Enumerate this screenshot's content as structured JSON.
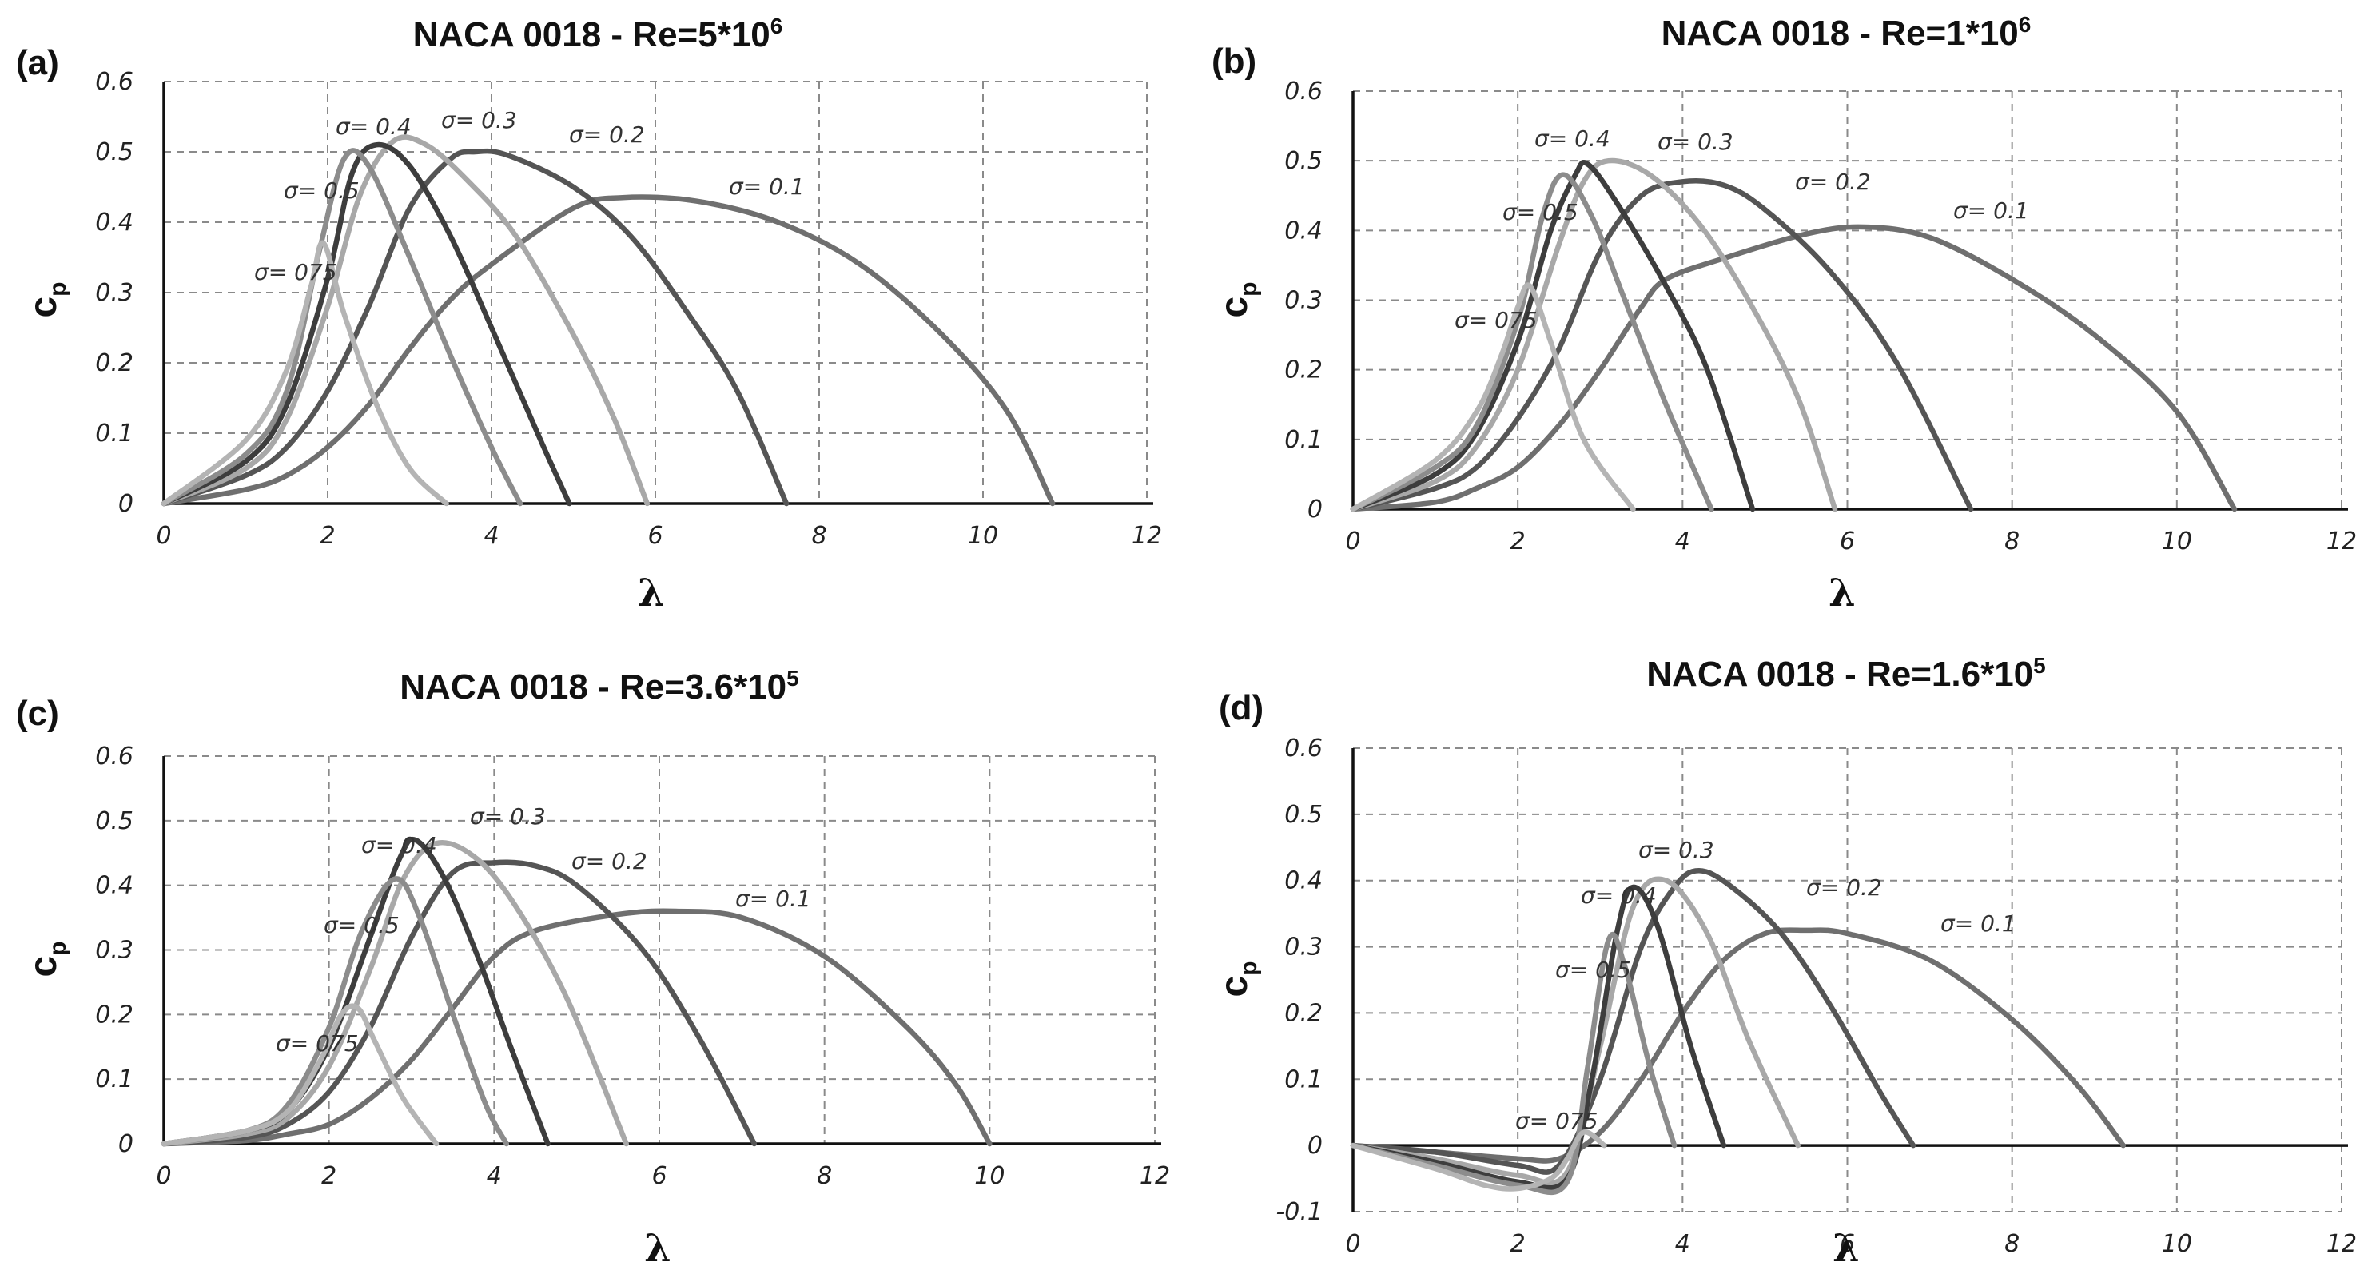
{
  "chart_data": [
    {
      "panel": "(a)",
      "type": "line",
      "title": "NACA 0018 - Re=5*10",
      "title_exp": "6",
      "xlabel": "λ",
      "ylabel": "c",
      "ylabel_sub": "p",
      "xlim": [
        0,
        12
      ],
      "ylim": [
        0,
        0.6
      ],
      "x_ticks": [
        "0",
        "2",
        "4",
        "6",
        "8",
        "10",
        "12"
      ],
      "y_ticks": [
        "0",
        "0.1",
        "0.2",
        "0.3",
        "0.4",
        "0.5",
        "0.6"
      ],
      "series": [
        {
          "name": "σ= 0.1",
          "color": "#6f6f6f",
          "x": [
            0,
            1,
            1.5,
            2,
            2.5,
            3,
            3.5,
            4,
            5,
            5.6,
            6.5,
            7.5,
            8.5,
            9.5,
            10.3,
            10.85
          ],
          "y": [
            0,
            0.02,
            0.04,
            0.08,
            0.14,
            0.22,
            0.29,
            0.34,
            0.42,
            0.435,
            0.43,
            0.4,
            0.34,
            0.24,
            0.13,
            0
          ]
        },
        {
          "name": "σ= 0.2",
          "color": "#555555",
          "x": [
            0,
            1,
            1.5,
            2,
            2.5,
            3,
            3.5,
            3.8,
            4.2,
            5,
            5.7,
            6.4,
            7,
            7.6
          ],
          "y": [
            0,
            0.04,
            0.08,
            0.16,
            0.28,
            0.42,
            0.49,
            0.5,
            0.495,
            0.45,
            0.38,
            0.27,
            0.16,
            0
          ]
        },
        {
          "name": "σ= 0.3",
          "color": "#a8a8a8",
          "x": [
            0,
            1,
            1.5,
            2,
            2.4,
            2.8,
            3.2,
            3.7,
            4.3,
            5,
            5.5,
            5.9
          ],
          "y": [
            0,
            0.05,
            0.12,
            0.28,
            0.44,
            0.515,
            0.51,
            0.46,
            0.38,
            0.24,
            0.12,
            0
          ]
        },
        {
          "name": "σ= 0.4",
          "color": "#3d3d3d",
          "x": [
            0,
            1,
            1.5,
            2,
            2.3,
            2.6,
            3,
            3.5,
            4,
            4.6,
            4.95
          ],
          "y": [
            0,
            0.06,
            0.14,
            0.32,
            0.47,
            0.51,
            0.48,
            0.38,
            0.25,
            0.09,
            0
          ]
        },
        {
          "name": "σ= 0.5",
          "color": "#8c8c8c",
          "x": [
            0,
            1,
            1.5,
            1.9,
            2.2,
            2.5,
            3,
            3.5,
            4,
            4.35
          ],
          "y": [
            0,
            0.07,
            0.16,
            0.36,
            0.49,
            0.48,
            0.35,
            0.21,
            0.08,
            0
          ]
        },
        {
          "name": "σ= 075",
          "color": "#b4b4b4",
          "x": [
            0,
            1,
            1.5,
            1.8,
            1.95,
            2.2,
            2.6,
            3,
            3.45
          ],
          "y": [
            0,
            0.09,
            0.19,
            0.31,
            0.37,
            0.27,
            0.14,
            0.05,
            0
          ]
        }
      ],
      "annotations": [
        "σ= 0.4",
        "σ= 0.3",
        "σ= 0.2",
        "σ= 0.5",
        "σ= 0.1",
        "σ= 075"
      ]
    },
    {
      "panel": "(b)",
      "type": "line",
      "title": "NACA 0018 - Re=1*10",
      "title_exp": "6",
      "xlabel": "λ",
      "ylabel": "c",
      "ylabel_sub": "p",
      "xlim": [
        0,
        12
      ],
      "ylim": [
        0,
        0.6
      ],
      "x_ticks": [
        "0",
        "2",
        "4",
        "6",
        "8",
        "10",
        "12"
      ],
      "y_ticks": [
        "0",
        "0.1",
        "0.2",
        "0.3",
        "0.4",
        "0.5",
        "0.6"
      ],
      "series": [
        {
          "name": "σ= 0.1",
          "color": "#6f6f6f",
          "x": [
            0,
            1,
            1.5,
            2,
            2.5,
            3,
            3.5,
            3.8,
            4.5,
            5.5,
            6.2,
            7,
            8,
            9,
            10,
            10.7
          ],
          "y": [
            0,
            0.01,
            0.03,
            0.06,
            0.12,
            0.2,
            0.29,
            0.33,
            0.36,
            0.395,
            0.405,
            0.39,
            0.33,
            0.25,
            0.14,
            0
          ]
        },
        {
          "name": "σ= 0.2",
          "color": "#555555",
          "x": [
            0,
            1,
            1.5,
            2,
            2.5,
            3,
            3.5,
            4,
            4.5,
            5,
            5.8,
            6.6,
            7.5
          ],
          "y": [
            0,
            0.03,
            0.06,
            0.13,
            0.23,
            0.37,
            0.45,
            0.47,
            0.465,
            0.43,
            0.34,
            0.21,
            0
          ]
        },
        {
          "name": "σ= 0.3",
          "color": "#a8a8a8",
          "x": [
            0,
            1,
            1.5,
            2,
            2.5,
            2.8,
            3.1,
            3.6,
            4.2,
            4.8,
            5.4,
            5.85
          ],
          "y": [
            0,
            0.04,
            0.09,
            0.2,
            0.38,
            0.47,
            0.5,
            0.48,
            0.41,
            0.3,
            0.16,
            0
          ]
        },
        {
          "name": "σ= 0.4",
          "color": "#3d3d3d",
          "x": [
            0,
            1,
            1.5,
            2,
            2.4,
            2.7,
            2.85,
            3.2,
            3.8,
            4.3,
            4.85
          ],
          "y": [
            0,
            0.05,
            0.11,
            0.24,
            0.4,
            0.48,
            0.495,
            0.44,
            0.32,
            0.2,
            0
          ]
        },
        {
          "name": "σ= 0.5",
          "color": "#8c8c8c",
          "x": [
            0,
            1,
            1.5,
            2,
            2.3,
            2.55,
            2.9,
            3.3,
            3.8,
            4.35
          ],
          "y": [
            0,
            0.06,
            0.12,
            0.27,
            0.42,
            0.48,
            0.42,
            0.3,
            0.15,
            0
          ]
        },
        {
          "name": "σ= 075",
          "color": "#b4b4b4",
          "x": [
            0,
            1,
            1.5,
            1.8,
            2,
            2.15,
            2.4,
            2.8,
            3.4
          ],
          "y": [
            0,
            0.07,
            0.14,
            0.22,
            0.29,
            0.32,
            0.24,
            0.1,
            0
          ]
        }
      ],
      "annotations": [
        "σ= 0.4",
        "σ= 0.3",
        "σ= 0.5",
        "σ= 0.2",
        "σ= 0.1",
        "σ= 075"
      ]
    },
    {
      "panel": "(c)",
      "type": "line",
      "title": "NACA 0018 - Re=3.6*10",
      "title_exp": "5",
      "xlabel": "λ",
      "ylabel": "c",
      "ylabel_sub": "p",
      "xlim": [
        0,
        12
      ],
      "ylim": [
        0,
        0.6
      ],
      "x_ticks": [
        "0",
        "2",
        "4",
        "6",
        "8",
        "10",
        "12"
      ],
      "y_ticks": [
        "0",
        "0.1",
        "0.2",
        "0.3",
        "0.4",
        "0.5",
        "0.6"
      ],
      "series": [
        {
          "name": "σ= 0.1",
          "color": "#6f6f6f",
          "x": [
            0,
            1,
            1.5,
            2,
            2.5,
            3,
            3.5,
            4,
            4.5,
            5.5,
            6.2,
            7,
            8,
            9,
            9.6,
            10
          ],
          "y": [
            0,
            0.005,
            0.015,
            0.03,
            0.07,
            0.13,
            0.21,
            0.29,
            0.33,
            0.355,
            0.36,
            0.35,
            0.29,
            0.18,
            0.09,
            0
          ]
        },
        {
          "name": "σ= 0.2",
          "color": "#555555",
          "x": [
            0,
            1,
            1.5,
            2,
            2.5,
            3,
            3.5,
            4,
            4.5,
            5,
            5.8,
            6.5,
            7.15
          ],
          "y": [
            0,
            0.01,
            0.03,
            0.08,
            0.18,
            0.32,
            0.42,
            0.435,
            0.43,
            0.4,
            0.3,
            0.16,
            0
          ]
        },
        {
          "name": "σ= 0.3",
          "color": "#a8a8a8",
          "x": [
            0,
            1,
            1.5,
            2,
            2.5,
            2.9,
            3.3,
            3.8,
            4.3,
            4.9,
            5.6
          ],
          "y": [
            0,
            0.015,
            0.04,
            0.12,
            0.27,
            0.41,
            0.465,
            0.44,
            0.36,
            0.22,
            0
          ]
        },
        {
          "name": "σ= 0.4",
          "color": "#3d3d3d",
          "x": [
            0,
            1,
            1.5,
            2,
            2.5,
            2.85,
            3.05,
            3.4,
            3.8,
            4.2,
            4.65
          ],
          "y": [
            0,
            0.02,
            0.05,
            0.15,
            0.32,
            0.44,
            0.47,
            0.41,
            0.29,
            0.15,
            0
          ]
        },
        {
          "name": "σ= 0.5",
          "color": "#8c8c8c",
          "x": [
            0,
            1,
            1.5,
            2,
            2.4,
            2.8,
            3.1,
            3.5,
            3.9,
            4.15
          ],
          "y": [
            0,
            0.02,
            0.06,
            0.18,
            0.33,
            0.41,
            0.35,
            0.2,
            0.06,
            0
          ]
        },
        {
          "name": "σ= 075",
          "color": "#b4b4b4",
          "x": [
            0,
            1,
            1.5,
            1.9,
            2.15,
            2.35,
            2.55,
            2.9,
            3.3
          ],
          "y": [
            0,
            0.02,
            0.05,
            0.13,
            0.2,
            0.21,
            0.16,
            0.07,
            0
          ]
        }
      ],
      "annotations": [
        "σ= 0.3",
        "σ= 0.4",
        "σ= 0.2",
        "σ= 0.1",
        "σ= 0.5",
        "σ= 075"
      ]
    },
    {
      "panel": "(d)",
      "type": "line",
      "title": "NACA 0018 - Re=1.6*10",
      "title_exp": "5",
      "xlabel": "λ",
      "ylabel": "c",
      "ylabel_sub": "p",
      "xlim": [
        0,
        12
      ],
      "ylim": [
        -0.1,
        0.6
      ],
      "x_ticks": [
        "0",
        "2",
        "4",
        "6",
        "8",
        "10",
        "12"
      ],
      "y_ticks": [
        "-0.1",
        "0",
        "0.1",
        "0.2",
        "0.3",
        "0.4",
        "0.5",
        "0.6"
      ],
      "series": [
        {
          "name": "σ= 0.1",
          "color": "#6f6f6f",
          "x": [
            0,
            1,
            2,
            2.5,
            3,
            3.5,
            4,
            4.5,
            5,
            5.5,
            6,
            7,
            8,
            8.8,
            9.35
          ],
          "y": [
            0,
            -0.01,
            -0.02,
            -0.02,
            0.02,
            0.1,
            0.2,
            0.28,
            0.32,
            0.325,
            0.32,
            0.28,
            0.19,
            0.09,
            0
          ]
        },
        {
          "name": "σ= 0.2",
          "color": "#555555",
          "x": [
            0,
            1,
            2,
            2.5,
            3,
            3.5,
            3.9,
            4.2,
            4.6,
            5.2,
            5.8,
            6.4,
            6.8
          ],
          "y": [
            0,
            -0.01,
            -0.03,
            -0.03,
            0.1,
            0.3,
            0.39,
            0.415,
            0.39,
            0.32,
            0.21,
            0.08,
            0
          ]
        },
        {
          "name": "σ= 0.3",
          "color": "#a8a8a8",
          "x": [
            0,
            1,
            2,
            2.6,
            3,
            3.4,
            3.8,
            4.3,
            4.8,
            5.4
          ],
          "y": [
            0,
            -0.02,
            -0.045,
            -0.04,
            0.15,
            0.36,
            0.4,
            0.32,
            0.16,
            0
          ]
        },
        {
          "name": "σ= 0.4",
          "color": "#3d3d3d",
          "x": [
            0,
            1,
            2,
            2.6,
            2.9,
            3.2,
            3.4,
            3.7,
            4.1,
            4.5
          ],
          "y": [
            0,
            -0.025,
            -0.055,
            -0.05,
            0.1,
            0.32,
            0.39,
            0.33,
            0.15,
            0
          ]
        },
        {
          "name": "σ= 0.5",
          "color": "#8c8c8c",
          "x": [
            0,
            1,
            2,
            2.6,
            2.85,
            3.1,
            3.3,
            3.6,
            3.9
          ],
          "y": [
            0,
            -0.03,
            -0.06,
            -0.055,
            0.12,
            0.31,
            0.27,
            0.12,
            0
          ]
        },
        {
          "name": "σ= 075",
          "color": "#b4b4b4",
          "x": [
            0,
            1,
            1.6,
            2,
            2.4,
            2.6,
            2.8,
            3.05
          ],
          "y": [
            0,
            -0.035,
            -0.06,
            -0.065,
            -0.05,
            -0.02,
            0.02,
            0
          ]
        }
      ],
      "annotations": [
        "σ= 0.3",
        "σ= 0.2",
        "σ= 0.4",
        "σ= 0.1",
        "σ= 0.5",
        "σ= 075"
      ]
    }
  ]
}
